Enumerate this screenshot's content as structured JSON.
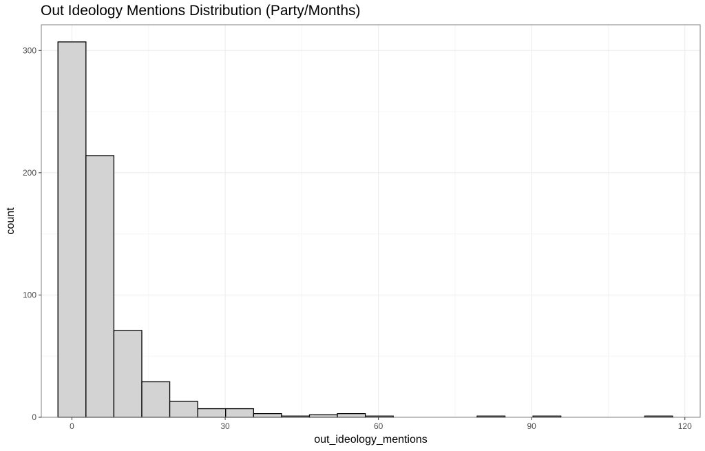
{
  "chart_data": {
    "type": "bar",
    "subtype": "histogram",
    "title": "Out Ideology Mentions Distribution (Party/Months)",
    "xlabel": "out_ideology_mentions",
    "ylabel": "count",
    "xlim": [
      -6,
      123
    ],
    "ylim": [
      0,
      321
    ],
    "x_ticks": [
      0,
      30,
      60,
      90,
      120
    ],
    "y_ticks": [
      0,
      100,
      200,
      300
    ],
    "grid": true,
    "bin_width": 5.47,
    "bins": [
      {
        "x0": -2.74,
        "x1": 2.74,
        "count": 307
      },
      {
        "x0": 2.74,
        "x1": 8.21,
        "count": 214
      },
      {
        "x0": 8.21,
        "x1": 13.68,
        "count": 71
      },
      {
        "x0": 13.68,
        "x1": 19.15,
        "count": 29
      },
      {
        "x0": 19.15,
        "x1": 24.62,
        "count": 13
      },
      {
        "x0": 24.62,
        "x1": 30.09,
        "count": 7
      },
      {
        "x0": 30.09,
        "x1": 35.56,
        "count": 7
      },
      {
        "x0": 35.56,
        "x1": 41.03,
        "count": 3
      },
      {
        "x0": 41.03,
        "x1": 46.5,
        "count": 1
      },
      {
        "x0": 46.5,
        "x1": 51.97,
        "count": 2
      },
      {
        "x0": 51.97,
        "x1": 57.44,
        "count": 3
      },
      {
        "x0": 57.44,
        "x1": 62.91,
        "count": 1
      },
      {
        "x0": 62.91,
        "x1": 68.38,
        "count": 0
      },
      {
        "x0": 68.38,
        "x1": 73.85,
        "count": 0
      },
      {
        "x0": 73.85,
        "x1": 79.32,
        "count": 0
      },
      {
        "x0": 79.32,
        "x1": 84.79,
        "count": 1
      },
      {
        "x0": 84.79,
        "x1": 90.26,
        "count": 0
      },
      {
        "x0": 90.26,
        "x1": 95.73,
        "count": 1
      },
      {
        "x0": 95.73,
        "x1": 101.2,
        "count": 0
      },
      {
        "x0": 101.2,
        "x1": 106.67,
        "count": 0
      },
      {
        "x0": 106.67,
        "x1": 112.14,
        "count": 0
      },
      {
        "x0": 112.14,
        "x1": 117.61,
        "count": 1
      }
    ],
    "colors": {
      "bar_fill": "#d3d3d3",
      "bar_stroke": "#000000",
      "grid_major": "#ebebeb",
      "grid_minor": "#f5f5f5",
      "panel_border": "#7f7f7f"
    }
  }
}
